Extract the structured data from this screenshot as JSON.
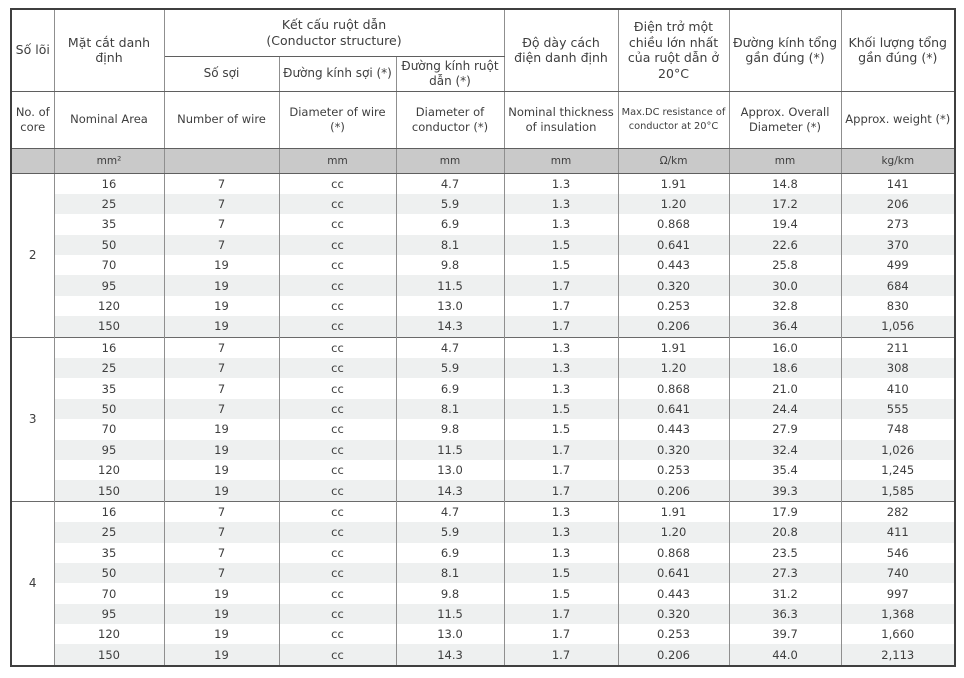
{
  "table": {
    "header": {
      "core": {
        "vi": "Số lõi",
        "en": "No. of core",
        "unit": ""
      },
      "nominal_area": {
        "vi": "Mặt cắt danh định",
        "en": "Nominal Area",
        "unit": "mm²"
      },
      "conductor_group": {
        "vi": "Kết cấu ruột dẫn",
        "en": "(Conductor structure)"
      },
      "number_of_wire": {
        "vi": "Số sợi",
        "en": "Number of wire",
        "unit": ""
      },
      "diameter_of_wire": {
        "vi": "Đường kính sợi (*)",
        "en": "Diameter of wire (*)",
        "unit": "mm"
      },
      "diameter_of_conductor": {
        "vi": "Đường kính ruột dẫn (*)",
        "en": "Diameter of conductor (*)",
        "unit": "mm"
      },
      "insulation_thickness": {
        "vi": "Độ dày cách điện danh định",
        "en": "Nominal thickness of insulation",
        "unit": "mm"
      },
      "dc_resistance": {
        "vi": "Điện trở một chiều lớn nhất của ruột dẫn ở 20°C",
        "en": "Max.DC resistance of conductor at 20°C",
        "unit": "Ω/km"
      },
      "overall_diameter": {
        "vi": "Đường kính tổng gần đúng (*)",
        "en": "Approx. Overall Diameter (*)",
        "unit": "mm"
      },
      "weight": {
        "vi": "Khối lượng tổng gần đúng (*)",
        "en": "Approx. weight (*)",
        "unit": "kg/km"
      }
    },
    "groups": [
      {
        "core": "2",
        "rows": [
          [
            "16",
            "7",
            "cc",
            "4.7",
            "1.3",
            "1.91",
            "14.8",
            "141"
          ],
          [
            "25",
            "7",
            "cc",
            "5.9",
            "1.3",
            "1.20",
            "17.2",
            "206"
          ],
          [
            "35",
            "7",
            "cc",
            "6.9",
            "1.3",
            "0.868",
            "19.4",
            "273"
          ],
          [
            "50",
            "7",
            "cc",
            "8.1",
            "1.5",
            "0.641",
            "22.6",
            "370"
          ],
          [
            "70",
            "19",
            "cc",
            "9.8",
            "1.5",
            "0.443",
            "25.8",
            "499"
          ],
          [
            "95",
            "19",
            "cc",
            "11.5",
            "1.7",
            "0.320",
            "30.0",
            "684"
          ],
          [
            "120",
            "19",
            "cc",
            "13.0",
            "1.7",
            "0.253",
            "32.8",
            "830"
          ],
          [
            "150",
            "19",
            "cc",
            "14.3",
            "1.7",
            "0.206",
            "36.4",
            "1,056"
          ]
        ]
      },
      {
        "core": "3",
        "rows": [
          [
            "16",
            "7",
            "cc",
            "4.7",
            "1.3",
            "1.91",
            "16.0",
            "211"
          ],
          [
            "25",
            "7",
            "cc",
            "5.9",
            "1.3",
            "1.20",
            "18.6",
            "308"
          ],
          [
            "35",
            "7",
            "cc",
            "6.9",
            "1.3",
            "0.868",
            "21.0",
            "410"
          ],
          [
            "50",
            "7",
            "cc",
            "8.1",
            "1.5",
            "0.641",
            "24.4",
            "555"
          ],
          [
            "70",
            "19",
            "cc",
            "9.8",
            "1.5",
            "0.443",
            "27.9",
            "748"
          ],
          [
            "95",
            "19",
            "cc",
            "11.5",
            "1.7",
            "0.320",
            "32.4",
            "1,026"
          ],
          [
            "120",
            "19",
            "cc",
            "13.0",
            "1.7",
            "0.253",
            "35.4",
            "1,245"
          ],
          [
            "150",
            "19",
            "cc",
            "14.3",
            "1.7",
            "0.206",
            "39.3",
            "1,585"
          ]
        ]
      },
      {
        "core": "4",
        "rows": [
          [
            "16",
            "7",
            "cc",
            "4.7",
            "1.3",
            "1.91",
            "17.9",
            "282"
          ],
          [
            "25",
            "7",
            "cc",
            "5.9",
            "1.3",
            "1.20",
            "20.8",
            "411"
          ],
          [
            "35",
            "7",
            "cc",
            "6.9",
            "1.3",
            "0.868",
            "23.5",
            "546"
          ],
          [
            "50",
            "7",
            "cc",
            "8.1",
            "1.5",
            "0.641",
            "27.3",
            "740"
          ],
          [
            "70",
            "19",
            "cc",
            "9.8",
            "1.5",
            "0.443",
            "31.2",
            "997"
          ],
          [
            "95",
            "19",
            "cc",
            "11.5",
            "1.7",
            "0.320",
            "36.3",
            "1,368"
          ],
          [
            "120",
            "19",
            "cc",
            "13.0",
            "1.7",
            "0.253",
            "39.7",
            "1,660"
          ],
          [
            "150",
            "19",
            "cc",
            "14.3",
            "1.7",
            "0.206",
            "44.0",
            "2,113"
          ]
        ]
      }
    ],
    "colors": {
      "units_row_bg": "#c9c9c9",
      "stripe_row_bg": "#eef0f0",
      "outer_border": "#3f3f3f",
      "inner_border": "#8f8f8f",
      "text": "#3e3e3e"
    }
  }
}
